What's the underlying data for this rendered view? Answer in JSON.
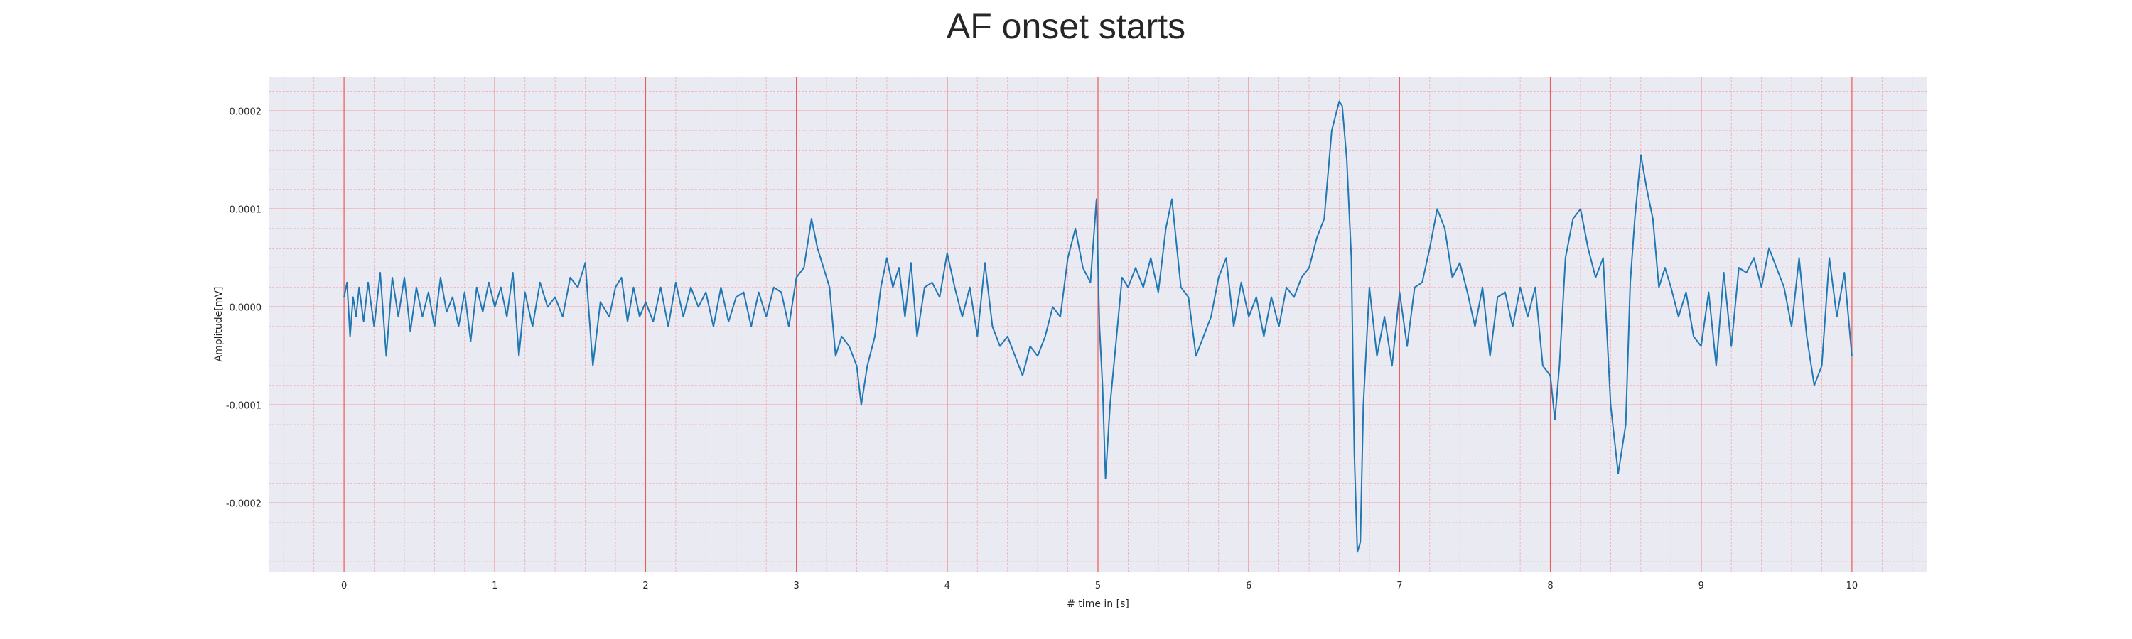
{
  "chart_data": {
    "type": "line",
    "title": "AF onset starts",
    "xlabel": "# time in [s]",
    "ylabel": "Amplitude[mV]",
    "xlim": [
      -0.5,
      10.5
    ],
    "ylim": [
      -0.00027,
      0.000235
    ],
    "xticks": [
      0,
      1,
      2,
      3,
      4,
      5,
      6,
      7,
      8,
      9,
      10
    ],
    "xtick_labels": [
      "0",
      "1",
      "2",
      "3",
      "4",
      "5",
      "6",
      "7",
      "8",
      "9",
      "10"
    ],
    "yticks": [
      -0.0002,
      -0.0001,
      0.0,
      0.0001,
      0.0002
    ],
    "ytick_labels": [
      "-0.0002",
      "-0.0001",
      "0.0000",
      "0.0001",
      "0.0002"
    ],
    "grid": "on (major and minor, ECG-paper style)",
    "colors": {
      "background": "#eaeaf2",
      "major_grid": "#ee5a5a",
      "minor_grid": "#f2a8b0",
      "line": "#1f77b4"
    },
    "series": [
      {
        "x": [
          0.0,
          0.02,
          0.04,
          0.06,
          0.08,
          0.1,
          0.13,
          0.16,
          0.2,
          0.24,
          0.28,
          0.32,
          0.36,
          0.4,
          0.44,
          0.48,
          0.52,
          0.56,
          0.6,
          0.64,
          0.68,
          0.72,
          0.76,
          0.8,
          0.84,
          0.88,
          0.92,
          0.96,
          1.0,
          1.04,
          1.08,
          1.12,
          1.16,
          1.2,
          1.25,
          1.3,
          1.35,
          1.4,
          1.45,
          1.5,
          1.55,
          1.6,
          1.65,
          1.7,
          1.76,
          1.8,
          1.84,
          1.88,
          1.92,
          1.96,
          2.0,
          2.05,
          2.1,
          2.15,
          2.2,
          2.25,
          2.3,
          2.35,
          2.4,
          2.45,
          2.5,
          2.55,
          2.6,
          2.65,
          2.7,
          2.75,
          2.8,
          2.85,
          2.9,
          2.95,
          3.0,
          3.05,
          3.1,
          3.14,
          3.18,
          3.22,
          3.26,
          3.3,
          3.35,
          3.4,
          3.43,
          3.47,
          3.52,
          3.56,
          3.6,
          3.64,
          3.68,
          3.72,
          3.76,
          3.8,
          3.85,
          3.9,
          3.95,
          4.0,
          4.05,
          4.1,
          4.15,
          4.2,
          4.25,
          4.3,
          4.35,
          4.4,
          4.45,
          4.5,
          4.55,
          4.6,
          4.65,
          4.7,
          4.75,
          4.8,
          4.85,
          4.9,
          4.95,
          4.99,
          5.01,
          5.03,
          5.05,
          5.08,
          5.12,
          5.16,
          5.2,
          5.25,
          5.3,
          5.35,
          5.4,
          5.45,
          5.49,
          5.55,
          5.6,
          5.65,
          5.7,
          5.75,
          5.8,
          5.85,
          5.9,
          5.95,
          6.0,
          6.05,
          6.1,
          6.15,
          6.2,
          6.25,
          6.3,
          6.35,
          6.4,
          6.45,
          6.5,
          6.55,
          6.6,
          6.62,
          6.65,
          6.68,
          6.7,
          6.72,
          6.74,
          6.76,
          6.8,
          6.85,
          6.9,
          6.95,
          7.0,
          7.05,
          7.1,
          7.15,
          7.2,
          7.25,
          7.3,
          7.35,
          7.4,
          7.45,
          7.5,
          7.55,
          7.6,
          7.65,
          7.7,
          7.75,
          7.8,
          7.85,
          7.9,
          7.95,
          8.0,
          8.03,
          8.06,
          8.1,
          8.15,
          8.2,
          8.25,
          8.3,
          8.35,
          8.4,
          8.45,
          8.5,
          8.53,
          8.56,
          8.6,
          8.64,
          8.68,
          8.72,
          8.76,
          8.8,
          8.85,
          8.9,
          8.95,
          9.0,
          9.05,
          9.1,
          9.15,
          9.2,
          9.25,
          9.3,
          9.35,
          9.4,
          9.45,
          9.5,
          9.55,
          9.6,
          9.65,
          9.7,
          9.75,
          9.8,
          9.85,
          9.9,
          9.95,
          10.0
        ],
        "y": [
          1e-05,
          2.5e-05,
          -3e-05,
          1e-05,
          -1e-05,
          2e-05,
          -1.5e-05,
          2.5e-05,
          -2e-05,
          3.5e-05,
          -5e-05,
          3e-05,
          -1e-05,
          3e-05,
          -2.5e-05,
          2e-05,
          -1e-05,
          1.5e-05,
          -2e-05,
          3e-05,
          -5e-06,
          1e-05,
          -2e-05,
          1.5e-05,
          -3.5e-05,
          2e-05,
          -5e-06,
          2.5e-05,
          0.0,
          2e-05,
          -1e-05,
          3.5e-05,
          -5e-05,
          1.5e-05,
          -2e-05,
          2.5e-05,
          0.0,
          1e-05,
          -1e-05,
          3e-05,
          2e-05,
          4.5e-05,
          -6e-05,
          5e-06,
          -1e-05,
          2e-05,
          3e-05,
          -1.5e-05,
          2e-05,
          -1e-05,
          5e-06,
          -1.5e-05,
          2e-05,
          -2e-05,
          2.5e-05,
          -1e-05,
          2e-05,
          0.0,
          1.5e-05,
          -2e-05,
          2e-05,
          -1.5e-05,
          1e-05,
          1.5e-05,
          -2e-05,
          1.5e-05,
          -1e-05,
          2e-05,
          1.5e-05,
          -2e-05,
          3e-05,
          4e-05,
          9e-05,
          6e-05,
          4e-05,
          2e-05,
          -5e-05,
          -3e-05,
          -4e-05,
          -6e-05,
          -0.0001,
          -6e-05,
          -3e-05,
          2e-05,
          5e-05,
          2e-05,
          4e-05,
          -1e-05,
          4.5e-05,
          -3e-05,
          2e-05,
          2.5e-05,
          1e-05,
          5.5e-05,
          2e-05,
          -1e-05,
          2e-05,
          -3e-05,
          4.5e-05,
          -2e-05,
          -4e-05,
          -3e-05,
          -5e-05,
          -7e-05,
          -4e-05,
          -5e-05,
          -3e-05,
          0.0,
          -1e-05,
          5e-05,
          8e-05,
          4e-05,
          2.5e-05,
          0.00011,
          -2e-05,
          -8e-05,
          -0.000175,
          -0.0001,
          -3.5e-05,
          3e-05,
          2e-05,
          4e-05,
          2e-05,
          5e-05,
          1.5e-05,
          8e-05,
          0.00011,
          2e-05,
          1e-05,
          -5e-05,
          -3e-05,
          -1e-05,
          3e-05,
          5e-05,
          -2e-05,
          2.5e-05,
          -1e-05,
          1e-05,
          -3e-05,
          1e-05,
          -2e-05,
          2e-05,
          1e-05,
          3e-05,
          4e-05,
          7e-05,
          9e-05,
          0.00018,
          0.00021,
          0.000205,
          0.00015,
          5e-05,
          -0.00015,
          -0.00025,
          -0.00024,
          -0.0001,
          2e-05,
          -5e-05,
          -1e-05,
          -6e-05,
          1.5e-05,
          -4e-05,
          2e-05,
          2.5e-05,
          6e-05,
          0.0001,
          8e-05,
          3e-05,
          4.5e-05,
          1.5e-05,
          -2e-05,
          2e-05,
          -5e-05,
          1e-05,
          1.5e-05,
          -2e-05,
          2e-05,
          -1e-05,
          2e-05,
          -6e-05,
          -7e-05,
          -0.000115,
          -6e-05,
          5e-05,
          9e-05,
          0.0001,
          6e-05,
          3e-05,
          5e-05,
          -0.0001,
          -0.00017,
          -0.00012,
          2.5e-05,
          9e-05,
          0.000155,
          0.00012,
          9e-05,
          2e-05,
          4e-05,
          2e-05,
          -1e-05,
          1.5e-05,
          -3e-05,
          -4e-05,
          1.5e-05,
          -6e-05,
          3.5e-05,
          -4e-05,
          4e-05,
          3.5e-05,
          5e-05,
          2e-05,
          6e-05,
          4e-05,
          2e-05,
          -2e-05,
          5e-05,
          -3e-05,
          -8e-05,
          -6e-05,
          5e-05,
          -1e-05,
          3.5e-05,
          -5e-05
        ]
      }
    ]
  }
}
